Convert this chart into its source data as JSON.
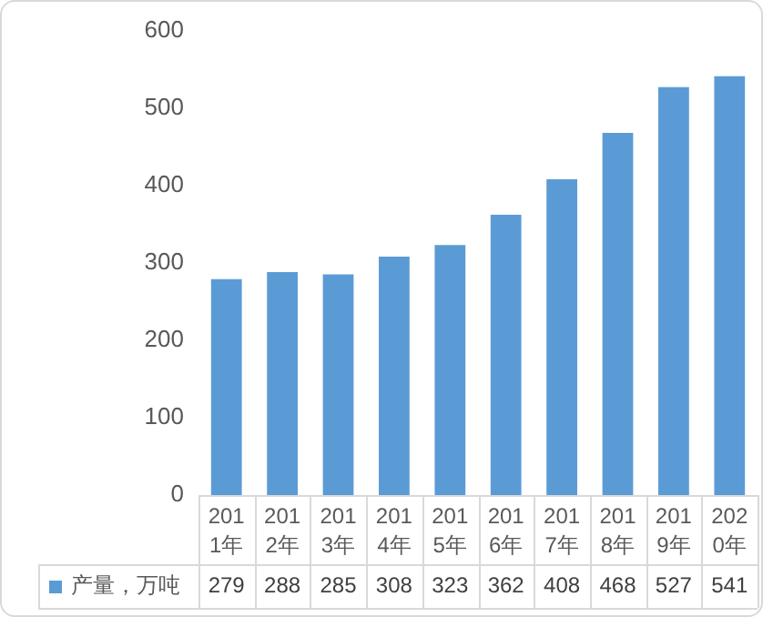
{
  "chart_data": {
    "type": "bar",
    "categories": [
      "2011年",
      "2012年",
      "2013年",
      "2014年",
      "2015年",
      "2016年",
      "2017年",
      "2018年",
      "2019年",
      "2020年"
    ],
    "series": [
      {
        "name": "产量，万吨",
        "color": "#5b9bd5",
        "values": [
          279,
          288,
          285,
          308,
          323,
          362,
          408,
          468,
          527,
          541
        ]
      }
    ],
    "ylim": [
      0,
      600
    ],
    "yticks": [
      0,
      100,
      200,
      300,
      400,
      500,
      600
    ],
    "grid": false,
    "legend": "bottom left",
    "data_labels": true
  }
}
